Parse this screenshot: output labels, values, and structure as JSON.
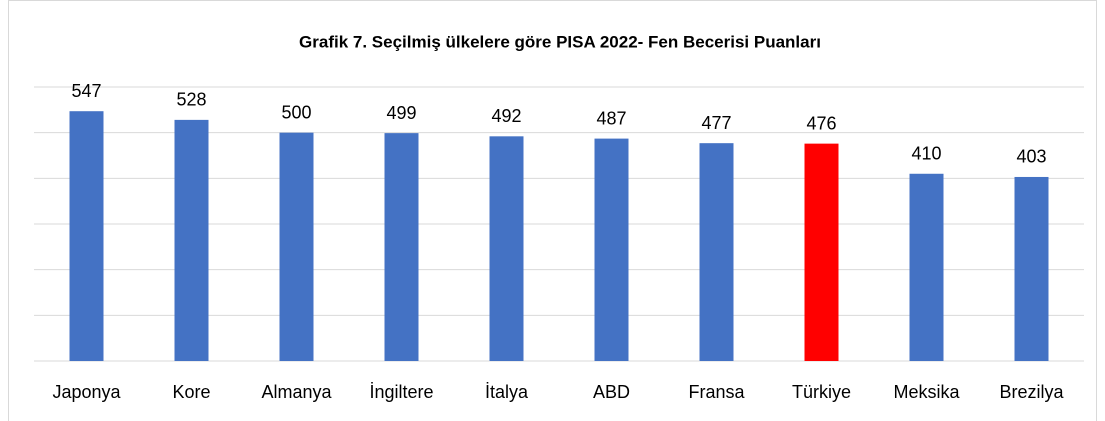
{
  "chart_data": {
    "type": "bar",
    "title": "Grafik 7. Seçilmiş ülkelere göre PISA 2022- Fen Becerisi Puanları",
    "categories": [
      "Japonya",
      "Kore",
      "Almanya",
      "İngiltere",
      "İtalya",
      "ABD",
      "Fransa",
      "Türkiye",
      "Meksika",
      "Brezilya"
    ],
    "values": [
      547,
      528,
      500,
      499,
      492,
      487,
      477,
      476,
      410,
      403
    ],
    "colors": [
      "#4472c4",
      "#4472c4",
      "#4472c4",
      "#4472c4",
      "#4472c4",
      "#4472c4",
      "#4472c4",
      "#ff0000",
      "#4472c4",
      "#4472c4"
    ],
    "ylim": [
      0,
      600
    ],
    "yticks": [
      0,
      100,
      200,
      300,
      400,
      500,
      600
    ],
    "grid": true
  }
}
